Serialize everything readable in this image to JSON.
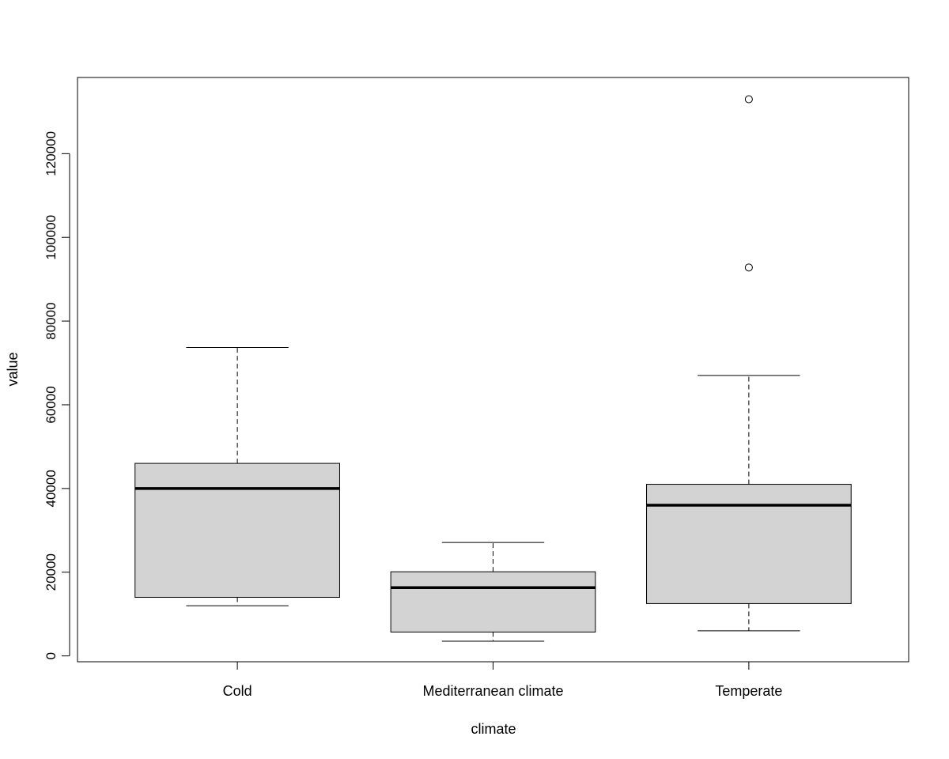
{
  "chart_data": {
    "type": "box",
    "xlabel": "climate",
    "ylabel": "value",
    "ylim": [
      -1400,
      138200
    ],
    "yticks": [
      0,
      20000,
      40000,
      60000,
      80000,
      100000,
      120000
    ],
    "ytick_labels": [
      "0",
      "20000",
      "40000",
      "60000",
      "80000",
      "100000",
      "120000"
    ],
    "categories": [
      "Cold",
      "Mediterranean climate",
      "Temperate"
    ],
    "boxes": [
      {
        "category": "Cold",
        "whisker_low": 12000,
        "q1": 14000,
        "median": 40000,
        "q3": 46000,
        "whisker_high": 73700,
        "outliers": []
      },
      {
        "category": "Mediterranean climate",
        "whisker_low": 3500,
        "q1": 5700,
        "median": 16300,
        "q3": 20100,
        "whisker_high": 27100,
        "outliers": []
      },
      {
        "category": "Temperate",
        "whisker_low": 6000,
        "q1": 12500,
        "median": 36000,
        "q3": 41000,
        "whisker_high": 67000,
        "outliers": [
          92800,
          133000
        ]
      }
    ],
    "box_fill": "#d3d3d3",
    "line_color": "#000000",
    "grid": false,
    "legend": "none"
  }
}
